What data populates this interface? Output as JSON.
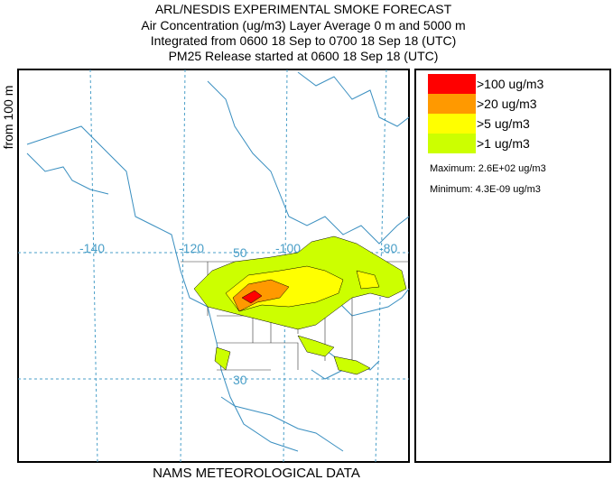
{
  "header": {
    "title": "ARL/NESDIS EXPERIMENTAL SMOKE FORECAST",
    "lines": [
      "Air Concentration (ug/m3) Layer Average    0 m and  5000 m",
      "Integrated from 0600 18 Sep to 0700 18 Sep 18 (UTC)",
      "PM25 Release started at 0600 18 Sep 18 (UTC)"
    ]
  },
  "side_label": "from   100 m",
  "footer": "NAMS METEOROLOGICAL DATA",
  "map": {
    "graticule_labels": [
      "-140",
      "-120",
      "50",
      "-100",
      "-80",
      "30"
    ]
  },
  "legend": {
    "items": [
      {
        "label": ">100 ug/m3",
        "color": "#ff0000"
      },
      {
        "label": ">20 ug/m3",
        "color": "#ff9900"
      },
      {
        "label": ">5 ug/m3",
        "color": "#ffff00"
      },
      {
        "label": ">1 ug/m3",
        "color": "#ccff00"
      }
    ],
    "maximum": "Maximum: 2.6E+02 ug/m3",
    "minimum": "Minimum: 4.3E-09 ug/m3"
  }
}
